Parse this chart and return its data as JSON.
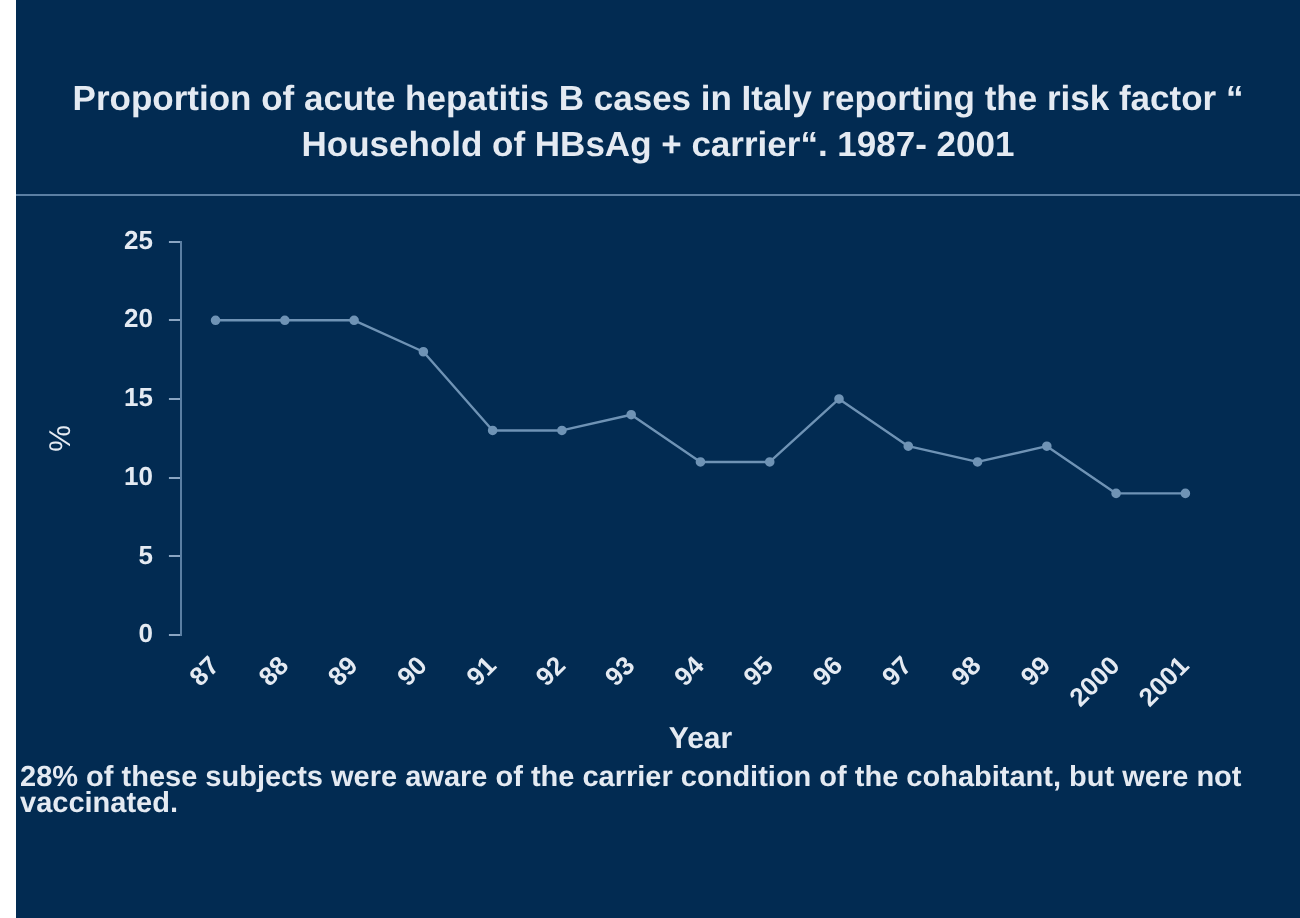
{
  "chart_data": {
    "type": "line",
    "title": "Proportion of acute hepatitis B cases in Italy reporting the risk factor “ Household of HBsAg + carrier“. 1987- 2001",
    "xlabel": "Year",
    "ylabel": "%",
    "categories": [
      "87",
      "88",
      "89",
      "90",
      "91",
      "92",
      "93",
      "94",
      "95",
      "96",
      "97",
      "98",
      "99",
      "2000",
      "2001"
    ],
    "series": [
      {
        "color": "#6f93b5",
        "values": [
          20,
          20,
          20,
          18,
          13,
          13,
          14,
          11,
          11,
          15,
          12,
          11,
          12,
          9,
          9
        ]
      }
    ],
    "ylim": [
      0,
      25
    ],
    "yticks": [
      0,
      5,
      10,
      15,
      20,
      25
    ],
    "grid": false,
    "legend": false,
    "marker": "circle",
    "line_style": "solid",
    "annotations": [
      "28% of these subjects were aware of the carrier condition of the cohabitant, but were not vaccinated."
    ]
  }
}
